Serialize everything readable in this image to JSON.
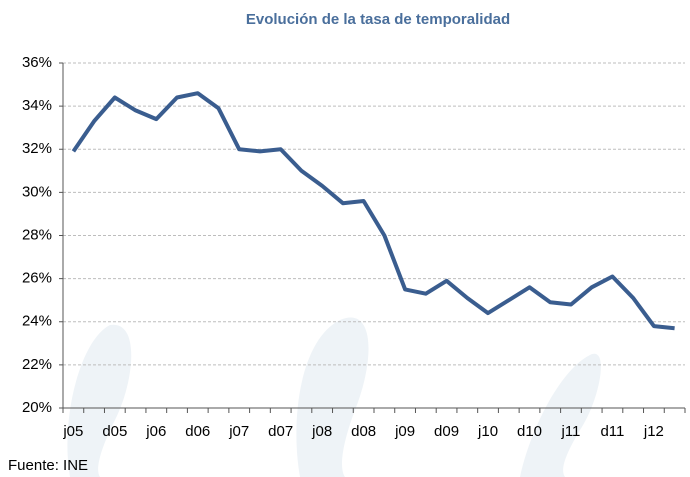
{
  "chart_data": {
    "type": "line",
    "title": "Evolución de la tasa de temporalidad",
    "source": "Fuente: INE",
    "categories": [
      "j05",
      null,
      "d05",
      null,
      "j06",
      null,
      "d06",
      null,
      "j07",
      null,
      "d07",
      null,
      "j08",
      null,
      "d08",
      null,
      "j09",
      null,
      "d09",
      null,
      "j10",
      null,
      "d10",
      null,
      "j11",
      null,
      "d11",
      null,
      "j12",
      null
    ],
    "series": [
      {
        "color": "#3a5d8f",
        "values": [
          31.9,
          33.3,
          34.4,
          33.8,
          33.4,
          34.4,
          34.6,
          33.9,
          32.0,
          31.9,
          32.0,
          31.0,
          30.3,
          29.5,
          29.6,
          28.0,
          25.5,
          25.3,
          25.9,
          25.1,
          24.4,
          25.0,
          25.6,
          24.9,
          24.8,
          25.6,
          26.1,
          25.1,
          23.8,
          23.7
        ]
      }
    ],
    "ylim": [
      20,
      36
    ],
    "yticks": [
      {
        "value": 20,
        "label": "20%"
      },
      {
        "value": 22,
        "label": "22%"
      },
      {
        "value": 24,
        "label": "24%"
      },
      {
        "value": 26,
        "label": "26%"
      },
      {
        "value": 28,
        "label": "28%"
      },
      {
        "value": 30,
        "label": "30%"
      },
      {
        "value": 32,
        "label": "32%"
      },
      {
        "value": 34,
        "label": "34%"
      },
      {
        "value": 36,
        "label": "36%"
      }
    ],
    "grid": true
  }
}
